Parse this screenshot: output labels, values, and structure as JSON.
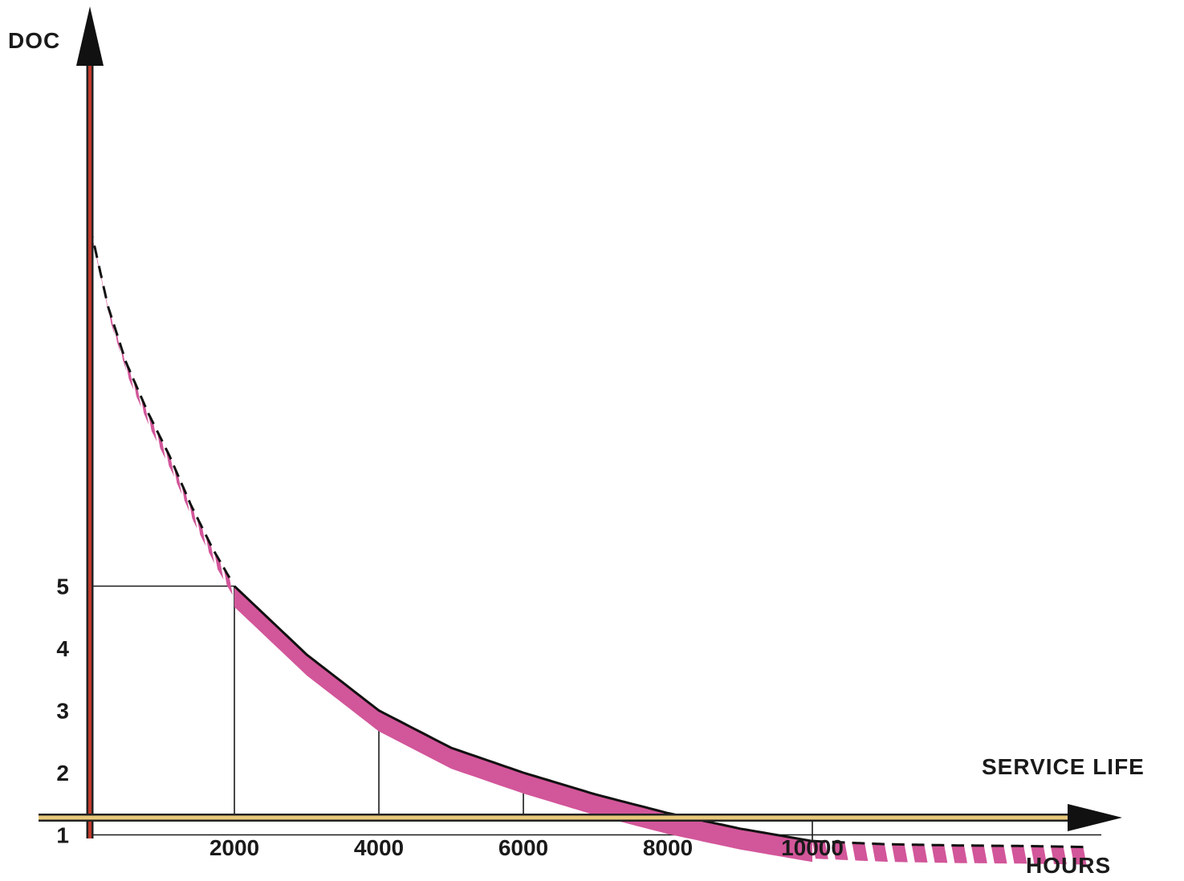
{
  "chart_data": {
    "type": "line",
    "ylabel": "DOC",
    "xlabel_top": "SERVICE LIFE",
    "xlabel_bottom": "HOURS",
    "x_ticks": [
      {
        "value": 2000,
        "label": "2000"
      },
      {
        "value": 4000,
        "label": "4000"
      },
      {
        "value": 6000,
        "label": "6000"
      },
      {
        "value": 8000,
        "label": "8000"
      },
      {
        "value": 10000,
        "label": "10000"
      }
    ],
    "y_ticks": [
      {
        "value": 1,
        "label": "1"
      },
      {
        "value": 2,
        "label": "2"
      },
      {
        "value": 3,
        "label": "3"
      },
      {
        "value": 4,
        "label": "4"
      },
      {
        "value": 5,
        "label": "5"
      }
    ],
    "grid_horizontal": [
      1,
      5
    ],
    "xlim": [
      0,
      14500
    ],
    "ylim": [
      0,
      12
    ],
    "series": [
      {
        "style": "hatched",
        "x": [
          0,
          250,
          500,
          800,
          1100,
          1400,
          1700,
          2000
        ],
        "y": [
          10.8,
          9.5,
          8.6,
          7.8,
          7.1,
          6.3,
          5.6,
          5.0
        ]
      },
      {
        "style": "solid",
        "x": [
          2000,
          3000,
          4000,
          5000,
          6000,
          7000,
          8000,
          9000,
          10000
        ],
        "y": [
          5.0,
          3.9,
          3.0,
          2.4,
          2.0,
          1.65,
          1.35,
          1.1,
          0.9
        ]
      },
      {
        "style": "hatched",
        "x": [
          10000,
          11000,
          12000,
          13000,
          14000
        ],
        "y": [
          0.9,
          0.85,
          0.83,
          0.82,
          0.8
        ]
      }
    ],
    "colors": {
      "band": "#d2569a",
      "edge": "#111111",
      "y_axis": "#c0392b",
      "x_axis": "#e8c87a"
    }
  }
}
